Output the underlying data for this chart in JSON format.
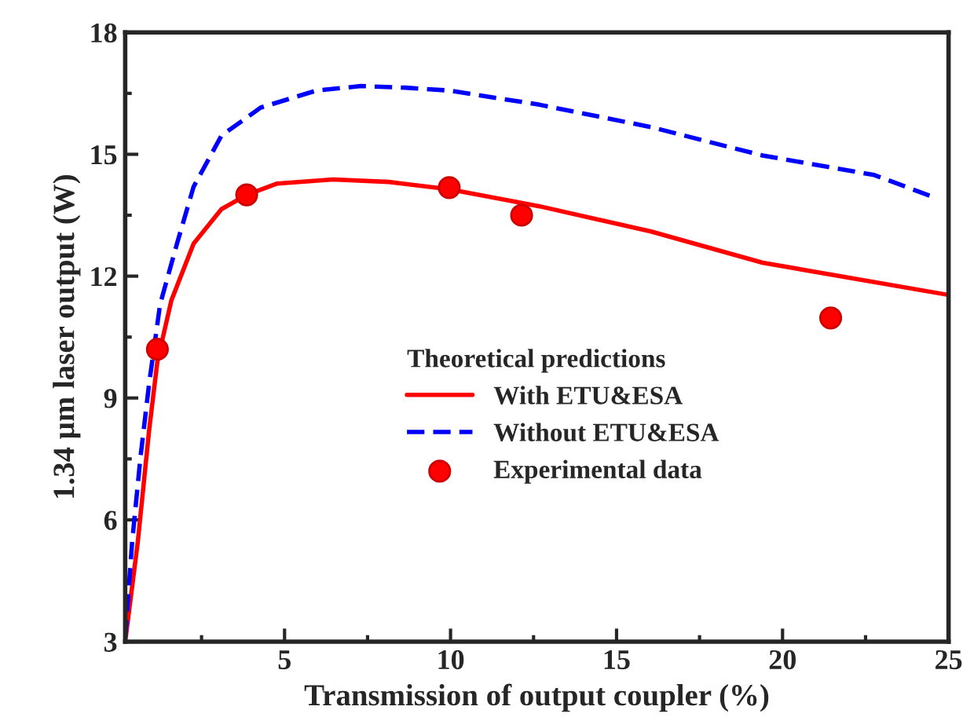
{
  "chart_data": {
    "type": "line",
    "xlabel": "Transmission of output coupler (%)",
    "ylabel": "1.34 μm laser output (W)",
    "legend_title": "Theoretical predictions",
    "xlim": [
      0.2,
      25
    ],
    "xticks": [
      5,
      10,
      15,
      20,
      25
    ],
    "ylim": [
      3,
      18
    ],
    "yticks": [
      3,
      6,
      9,
      12,
      15,
      18
    ],
    "grid": false,
    "legend": "center right",
    "series": [
      {
        "name": "With ETU&ESA",
        "color": "#ff0000",
        "line_style": "solid",
        "x": [
          0.2,
          0.58,
          0.92,
          1.17,
          1.59,
          2.26,
          3.1,
          3.86,
          4.78,
          6.46,
          8.14,
          9.96,
          12.68,
          16.04,
          19.4,
          24.98
        ],
        "values": [
          3.0,
          5.46,
          8.2,
          9.9,
          11.4,
          12.8,
          13.65,
          14.0,
          14.28,
          14.38,
          14.32,
          14.14,
          13.72,
          13.1,
          12.33,
          11.54
        ]
      },
      {
        "name": "Without ETU&ESA",
        "color": "#0000ff",
        "line_style": "dashed",
        "x": [
          0.2,
          0.41,
          0.66,
          0.92,
          1.25,
          1.76,
          2.26,
          3.1,
          4.28,
          5.96,
          7.3,
          8.65,
          9.96,
          12.68,
          16.04,
          19.4,
          22.76,
          24.5
        ],
        "values": [
          3.1,
          5.46,
          7.54,
          9.35,
          11.3,
          12.8,
          14.2,
          15.46,
          16.15,
          16.57,
          16.68,
          16.64,
          16.57,
          16.22,
          15.67,
          14.97,
          14.49,
          13.96
        ]
      },
      {
        "name": "Experimental data",
        "type": "scatter",
        "marker": "circle",
        "color": "#ff0000",
        "x": [
          1.17,
          3.86,
          9.96,
          12.14,
          21.45
        ],
        "values": [
          10.2,
          14.0,
          14.18,
          13.5,
          10.97
        ]
      }
    ]
  }
}
